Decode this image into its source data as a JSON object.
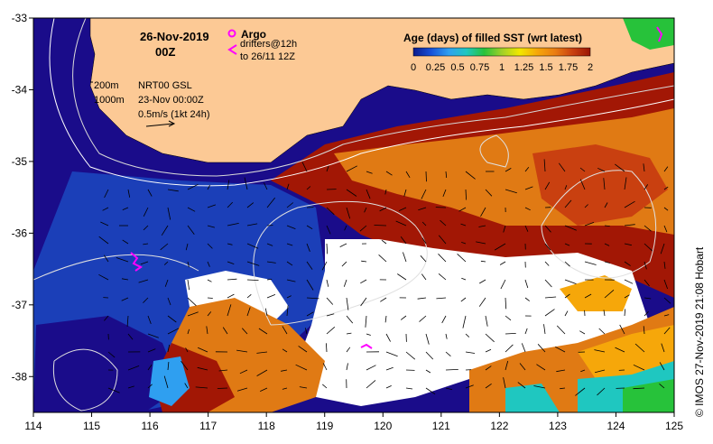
{
  "map": {
    "date_label": "26-Nov-2019",
    "time_label": "00Z",
    "legend": {
      "argo_label": "Argo",
      "drifters_label": "drifters@12h",
      "drifters_period": "to 26/11 12Z",
      "argo_color": "#ff00ff",
      "drifter_color": "#ff00ff"
    },
    "isobaths": {
      "shallow": "200m",
      "deep": "1000m"
    },
    "sea_level": {
      "product": "NRT00 GSL",
      "time": "23-Nov 00:00Z",
      "vector_scale": "0.5m/s (1kt 24h)"
    },
    "colorbar": {
      "title": "Age (days) of filled SST (wrt latest)",
      "tick_labels": [
        "0",
        "0.25",
        "0.5",
        "0.75",
        "1",
        "1.25",
        "1.5",
        "1.75",
        "2"
      ],
      "colors": [
        "#0a1a8c",
        "#1750d8",
        "#2f9ff0",
        "#1fc7c0",
        "#27c23a",
        "#9fd028",
        "#f2e800",
        "#f6a70a",
        "#ea7d12",
        "#c94010",
        "#9a1505"
      ]
    },
    "x_axis": {
      "ticks": [
        114,
        115,
        116,
        117,
        118,
        119,
        120,
        121,
        122,
        123,
        124,
        125
      ]
    },
    "y_axis": {
      "ticks": [
        -33,
        -34,
        -35,
        -36,
        -37,
        -38
      ]
    },
    "credit": "© IMOS 27-Nov-2019 21:08 Hobart",
    "colors": {
      "land": "#fcc995",
      "no_data": "#ffffff",
      "old_water": "#1a0c8a",
      "recent_water": "#a21705",
      "mid_water": "#e07a14"
    }
  }
}
